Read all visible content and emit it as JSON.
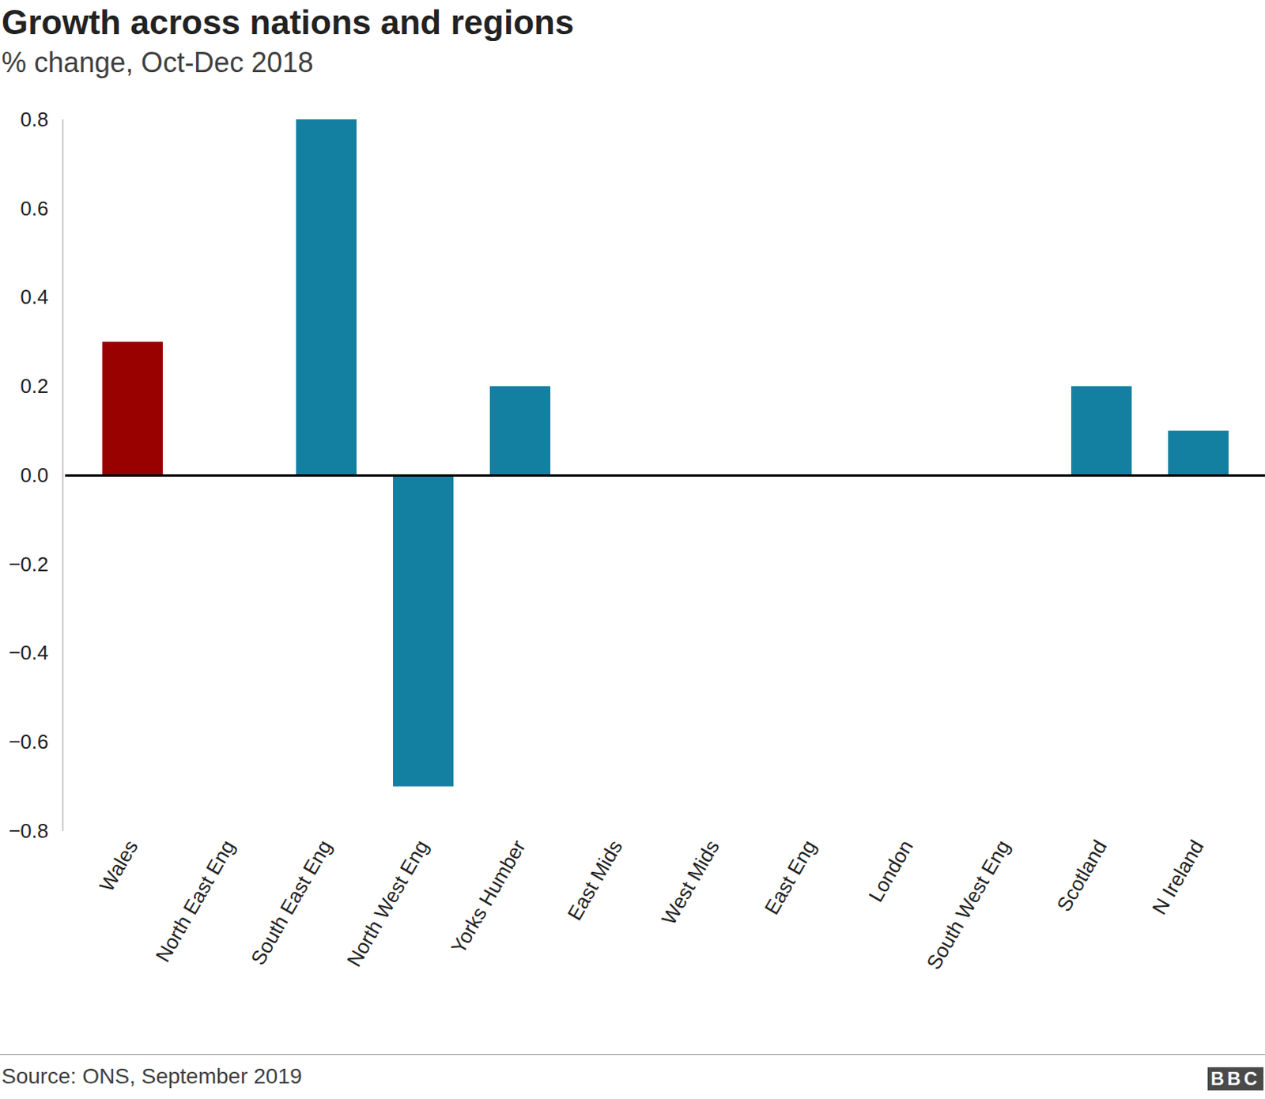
{
  "chart_data": {
    "type": "bar",
    "title": "Growth across nations and regions",
    "subtitle": "% change, Oct-Dec 2018",
    "categories": [
      "Wales",
      "North East Eng",
      "South East Eng",
      "North West Eng",
      "Yorks Humber",
      "East Mids",
      "West Mids",
      "East Eng",
      "London",
      "South West Eng",
      "Scotland",
      "N Ireland"
    ],
    "values": [
      0.3,
      0,
      0.8,
      -0.7,
      0.2,
      0,
      0,
      0,
      0,
      0,
      0.2,
      0.1
    ],
    "colors": [
      "#990000",
      "#1380a1",
      "#1380a1",
      "#1380a1",
      "#1380a1",
      "#1380a1",
      "#1380a1",
      "#1380a1",
      "#1380a1",
      "#1380a1",
      "#1380a1",
      "#1380a1"
    ],
    "ylim": [
      -0.8,
      0.8
    ],
    "yticks": [
      {
        "value": -0.8,
        "label": "−0.8"
      },
      {
        "value": -0.6,
        "label": "−0.6"
      },
      {
        "value": -0.4,
        "label": "−0.4"
      },
      {
        "value": -0.2,
        "label": "−0.2"
      },
      {
        "value": 0,
        "label": "0.0"
      },
      0.2,
      0.4,
      0.6,
      0.8
    ],
    "grid": false,
    "source": "Source: ONS, September 2019",
    "logo": "BBC"
  }
}
